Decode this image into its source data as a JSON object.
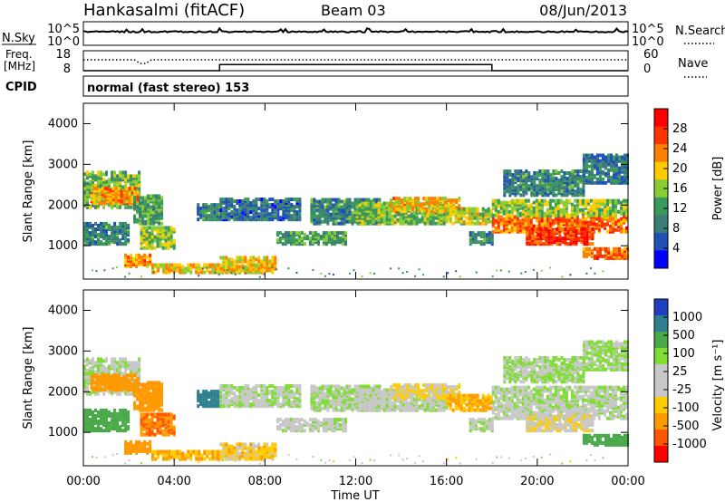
{
  "header": {
    "station": "Hankasalmi (fitACF)",
    "beam": "Beam 03",
    "date": "08/Jun/2013"
  },
  "noise_panel": {
    "left_label": "N.Sky",
    "left_ticks": [
      "10^5",
      "10^0"
    ],
    "right_label": "N.Search",
    "right_ticks": [
      "10^5",
      "10^0"
    ]
  },
  "freq_panel": {
    "left_label_1": "Freq.",
    "left_label_2": "[MHz]",
    "left_ticks": [
      "18",
      "8"
    ],
    "right_label": "Nave",
    "right_ticks": [
      "60",
      "0"
    ]
  },
  "cpid_panel": {
    "label": "CPID",
    "text": "normal (fast stereo) 153"
  },
  "power_colorbar": {
    "label": "Power [dB]",
    "ticks": [
      "28",
      "24",
      "20",
      "16",
      "12",
      "8",
      "4"
    ],
    "colors": [
      "#ff0000",
      "#ff3300",
      "#ff7f00",
      "#ffcc00",
      "#88cc33",
      "#3a9a5a",
      "#3b7c77",
      "#2050b8",
      "#0000ff"
    ]
  },
  "velocity_colorbar": {
    "label": "Velocity [m s⁻¹]",
    "ticks": [
      "1000",
      "500",
      "100",
      "25",
      "-25",
      "-100",
      "-500",
      "-1000"
    ],
    "colors": [
      "#1f3fbf",
      "#2e7f8f",
      "#4aaa4a",
      "#7fdd33",
      "#c8c8c8",
      "#c8c8c8",
      "#ffcc00",
      "#ff9900",
      "#ff5500",
      "#ff0000"
    ]
  },
  "time_axis": {
    "label": "Time UT",
    "ticks": [
      "00:00",
      "04:00",
      "08:00",
      "12:00",
      "16:00",
      "20:00",
      "00:00"
    ]
  },
  "range_axis": {
    "label": "Slant Range [km]",
    "ticks": [
      "4000",
      "3000",
      "2000",
      "1000"
    ]
  },
  "chart_data": {
    "type": "heatmap",
    "x_unit": "hours UT",
    "xlim": [
      0,
      24
    ],
    "ylim": [
      180,
      4500
    ],
    "y_unit": "km",
    "power_scale_db": [
      0,
      32
    ],
    "velocity_scale": [
      -1200,
      1200
    ],
    "freq_mhz": [
      {
        "start": 0,
        "end": 6,
        "value": 10
      },
      {
        "start": 6,
        "end": 18,
        "value": 10.5
      },
      {
        "start": 18,
        "end": 24,
        "value": 10
      }
    ],
    "echo_regions": [
      {
        "t0": 0.0,
        "t1": 2.5,
        "r0": 1900,
        "r1": 2800,
        "power": 14,
        "vel": 15
      },
      {
        "t0": 0.3,
        "t1": 2.4,
        "r0": 2000,
        "r1": 2400,
        "power": 22,
        "vel": -200
      },
      {
        "t0": 2.2,
        "t1": 3.5,
        "r0": 1500,
        "r1": 2200,
        "power": 12,
        "vel": -100
      },
      {
        "t0": 0.0,
        "t1": 2.0,
        "r0": 1000,
        "r1": 1500,
        "power": 10,
        "vel": 100
      },
      {
        "t0": 2.5,
        "t1": 4.0,
        "r0": 900,
        "r1": 1400,
        "power": 16,
        "vel": -300
      },
      {
        "t0": 1.8,
        "t1": 3.0,
        "r0": 450,
        "r1": 750,
        "power": 22,
        "vel": -100
      },
      {
        "t0": 3.0,
        "t1": 6.0,
        "r0": 300,
        "r1": 500,
        "power": 20,
        "vel": -60
      },
      {
        "t0": 5.0,
        "t1": 6.0,
        "r0": 1600,
        "r1": 2000,
        "power": 10,
        "vel": 500
      },
      {
        "t0": 6.0,
        "t1": 9.5,
        "r0": 1600,
        "r1": 2100,
        "power": 8,
        "vel": 15
      },
      {
        "t0": 6.0,
        "t1": 8.5,
        "r0": 300,
        "r1": 700,
        "power": 20,
        "vel": -40
      },
      {
        "t0": 8.5,
        "t1": 11.5,
        "r0": 1000,
        "r1": 1300,
        "power": 12,
        "vel": 10
      },
      {
        "t0": 10.0,
        "t1": 13.0,
        "r0": 1500,
        "r1": 2100,
        "power": 10,
        "vel": 20
      },
      {
        "t0": 12.0,
        "t1": 16.0,
        "r0": 1500,
        "r1": 2000,
        "power": 15,
        "vel": 10
      },
      {
        "t0": 13.5,
        "t1": 16.5,
        "r0": 1800,
        "r1": 2150,
        "power": 20,
        "vel": -30
      },
      {
        "t0": 16.0,
        "t1": 18.0,
        "r0": 1500,
        "r1": 1900,
        "power": 18,
        "vel": -60
      },
      {
        "t0": 17.0,
        "t1": 18.0,
        "r0": 1000,
        "r1": 1300,
        "power": 10,
        "vel": 15
      },
      {
        "t0": 18.0,
        "t1": 24.0,
        "r0": 1300,
        "r1": 1700,
        "power": 24,
        "vel": 10
      },
      {
        "t0": 19.5,
        "t1": 22.5,
        "r0": 1000,
        "r1": 1400,
        "power": 27,
        "vel": -15
      },
      {
        "t0": 18.0,
        "t1": 24.0,
        "r0": 1700,
        "r1": 2100,
        "power": 16,
        "vel": 20
      },
      {
        "t0": 18.5,
        "t1": 22.0,
        "r0": 2200,
        "r1": 2800,
        "power": 10,
        "vel": 30
      },
      {
        "t0": 22.0,
        "t1": 24.0,
        "r0": 2500,
        "r1": 3200,
        "power": 9,
        "vel": 30
      },
      {
        "t0": 22.0,
        "t1": 24.0,
        "r0": 650,
        "r1": 900,
        "power": 24,
        "vel": 150
      }
    ]
  }
}
